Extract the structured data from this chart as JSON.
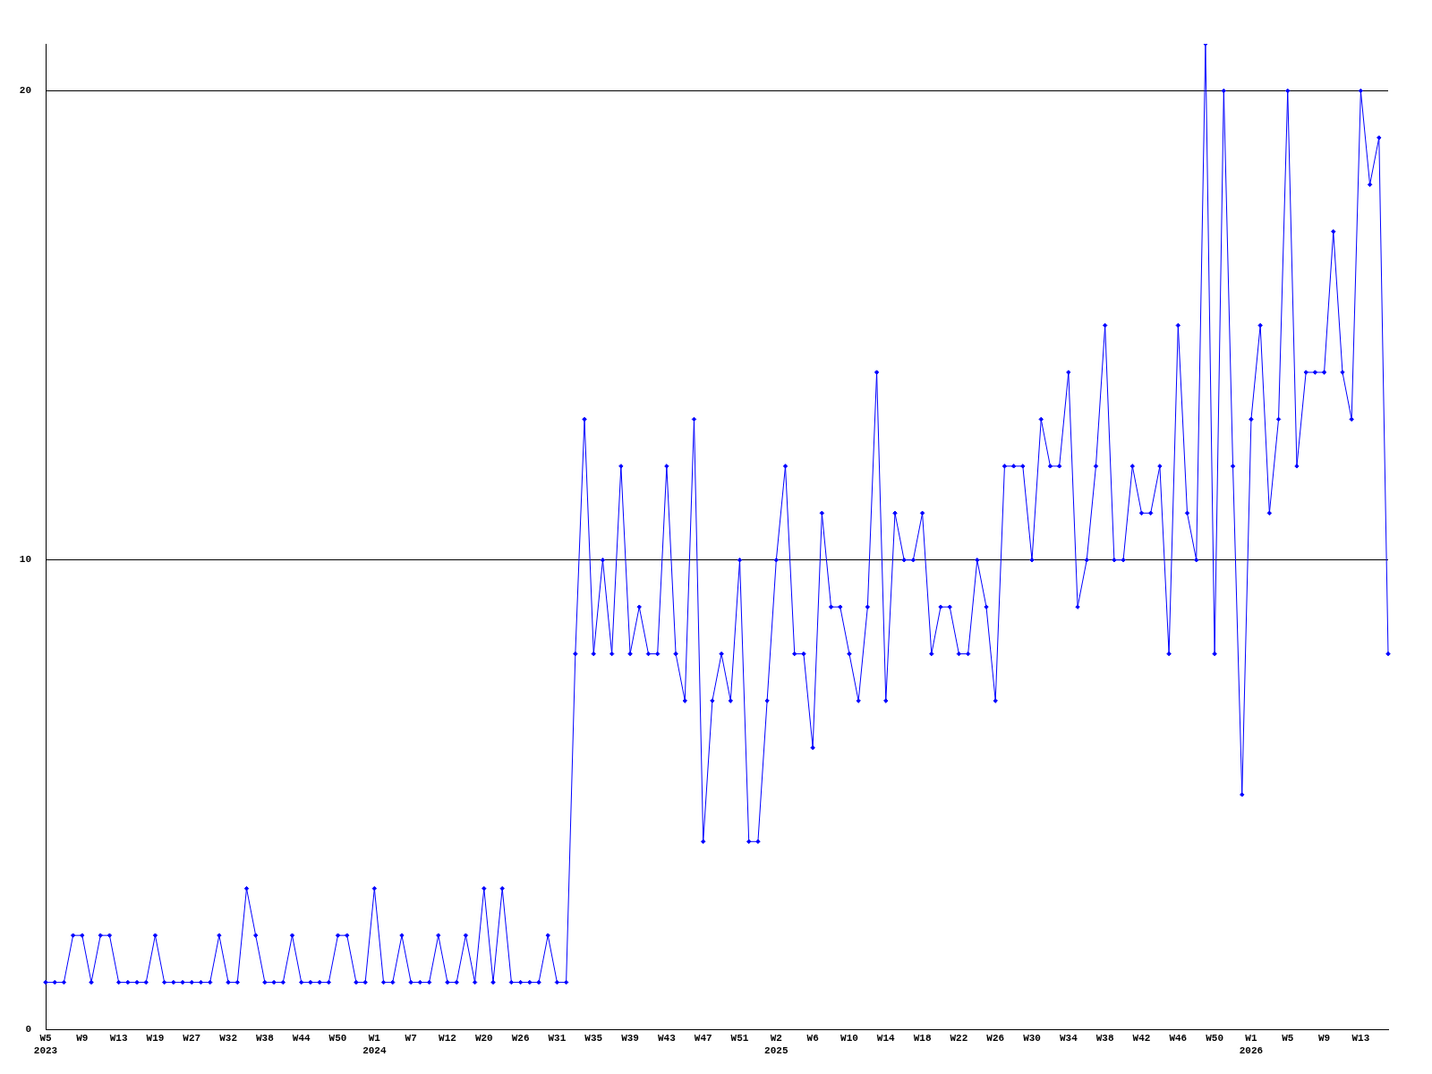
{
  "chart_data": {
    "type": "line",
    "categories": [
      "W5\n2023",
      null,
      null,
      null,
      "W9",
      null,
      null,
      null,
      "W13",
      null,
      null,
      null,
      "W19",
      null,
      null,
      null,
      "W27",
      null,
      null,
      null,
      "W32",
      null,
      null,
      null,
      "W38",
      null,
      null,
      null,
      "W44",
      null,
      null,
      null,
      "W50",
      null,
      null,
      null,
      "W1\n2024",
      null,
      null,
      null,
      "W7",
      null,
      null,
      null,
      "W12",
      null,
      null,
      null,
      "W20",
      null,
      null,
      null,
      "W26",
      null,
      null,
      null,
      "W31",
      null,
      null,
      null,
      "W35",
      null,
      null,
      null,
      "W39",
      null,
      null,
      null,
      "W43",
      null,
      null,
      null,
      "W47",
      null,
      null,
      null,
      "W51",
      null,
      null,
      null,
      "W2\n2025",
      null,
      null,
      null,
      "W6",
      null,
      null,
      null,
      "W10",
      null,
      null,
      null,
      "W14",
      null,
      null,
      null,
      "W18",
      null,
      null,
      null,
      "W22",
      null,
      null,
      null,
      "W26",
      null,
      null,
      null,
      "W30",
      null,
      null,
      null,
      "W34",
      null,
      null,
      null,
      "W38",
      null,
      null,
      null,
      "W42",
      null,
      null,
      null,
      "W46",
      null,
      null,
      null,
      "W50",
      null,
      null,
      null,
      "W1\n2026",
      null,
      null,
      null,
      "W5",
      null,
      null,
      null,
      "W9",
      null,
      null,
      null,
      "W13",
      null,
      null,
      null
    ],
    "series": [
      {
        "color": "#0000ff",
        "values": [
          1,
          1,
          1,
          2,
          2,
          1,
          2,
          2,
          1,
          1,
          1,
          1,
          2,
          1,
          1,
          1,
          1,
          1,
          1,
          2,
          1,
          1,
          3,
          2,
          1,
          1,
          1,
          2,
          1,
          1,
          1,
          1,
          2,
          2,
          1,
          1,
          3,
          1,
          1,
          2,
          1,
          1,
          1,
          2,
          1,
          1,
          2,
          1,
          3,
          1,
          3,
          1,
          1,
          1,
          1,
          2,
          1,
          1,
          8,
          13,
          8,
          10,
          8,
          12,
          8,
          9,
          8,
          8,
          12,
          8,
          7,
          13,
          4,
          7,
          8,
          7,
          10,
          4,
          4,
          7,
          10,
          12,
          8,
          8,
          6,
          11,
          9,
          9,
          8,
          7,
          9,
          14,
          7,
          11,
          10,
          10,
          11,
          8,
          9,
          9,
          8,
          8,
          10,
          9,
          7,
          12,
          12,
          12,
          10,
          13,
          12,
          12,
          14,
          9,
          10,
          12,
          15,
          10,
          10,
          12,
          11,
          11,
          12,
          8,
          15,
          11,
          10,
          21,
          8,
          20,
          12,
          5,
          13,
          15,
          11,
          13,
          20,
          12,
          14,
          14,
          14,
          17,
          14,
          13,
          20,
          18,
          19,
          8
        ]
      }
    ],
    "ylim": [
      0,
      21
    ],
    "yticks": [
      0,
      10,
      20
    ],
    "grid": "y",
    "legend": false,
    "marker": "diamond",
    "line_style": "solid"
  }
}
